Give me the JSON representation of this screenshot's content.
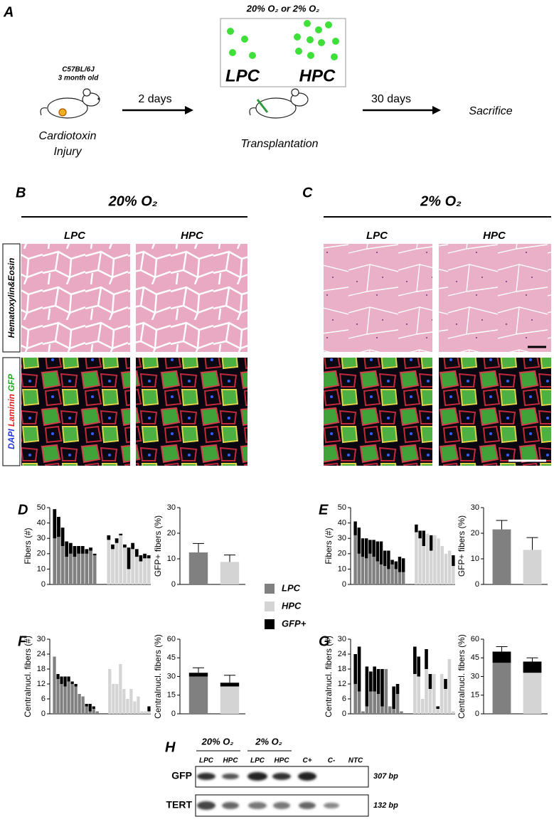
{
  "panel_a": {
    "letter": "A",
    "condition_line": "20% O₂ or 2% O₂",
    "box_labels": [
      "LPC",
      "HPC"
    ],
    "strain": "C57BL/6J",
    "age": "3 month old",
    "step1": "2 days",
    "step2": "30 days",
    "injury": [
      "Cardiotoxin",
      "Injury"
    ],
    "transplant": "Transplantation",
    "end": "Sacrifice"
  },
  "panel_b": {
    "letter": "B",
    "title": "20% O₂",
    "columns": [
      "LPC",
      "HPC"
    ],
    "stain_he": "Hematoxylin&Eosin",
    "stain_if": [
      "DAPI",
      "Laminin",
      "GFP"
    ]
  },
  "panel_c": {
    "letter": "C",
    "title": "2% O₂",
    "columns": [
      "LPC",
      "HPC"
    ]
  },
  "legend": [
    {
      "name": "LPC",
      "color": "#808080"
    },
    {
      "name": "HPC",
      "color": "#d4d4d4"
    },
    {
      "name": "GFP+",
      "color": "#000000"
    }
  ],
  "chart_data": [
    {
      "type": "bar",
      "panel": "D",
      "stacked": true,
      "ylabel": "Fibers (#)",
      "ylim": [
        0,
        50
      ],
      "yticks": [
        0,
        10,
        20,
        30,
        40,
        50
      ],
      "categories": [
        null,
        null,
        null,
        null,
        null,
        null,
        null,
        null,
        null,
        null,
        null,
        null,
        null,
        null,
        null,
        null,
        null,
        null,
        null,
        null,
        null,
        null
      ],
      "series": [
        {
          "name": "LPC",
          "color": "#808080",
          "values": [
            30,
            31,
            25,
            18,
            20,
            18,
            20,
            20,
            20,
            22,
            19,
            null,
            null,
            null,
            null,
            null,
            null,
            null,
            null,
            null,
            null,
            null
          ]
        },
        {
          "name": "HPC",
          "color": "#d4d4d4",
          "values": [
            null,
            null,
            null,
            null,
            null,
            null,
            null,
            null,
            null,
            null,
            null,
            29,
            23,
            27,
            32,
            24,
            10,
            23,
            18,
            15,
            17,
            17
          ]
        },
        {
          "name": "GFP+",
          "color": "#000000",
          "values": [
            19,
            13,
            12,
            10,
            7,
            7,
            5,
            5,
            3,
            2,
            1,
            3,
            3,
            3,
            1,
            2,
            14,
            4,
            5,
            4,
            3,
            2
          ]
        }
      ]
    },
    {
      "type": "bar",
      "stacked": true,
      "ylabel": "GFP+ fibers (%)",
      "ylim": [
        0,
        30
      ],
      "yticks": [
        0,
        10,
        20,
        30
      ],
      "categories": [
        null,
        null
      ],
      "series": [
        {
          "name": "LPC",
          "color": "#808080",
          "values": [
            12.5,
            null
          ],
          "errors": [
            3.5,
            null
          ]
        },
        {
          "name": "HPC",
          "color": "#d4d4d4",
          "values": [
            null,
            8.8
          ],
          "errors": [
            null,
            2.7
          ]
        }
      ]
    },
    {
      "type": "bar",
      "panel": "E",
      "stacked": true,
      "ylabel": "Fibers (#)",
      "ylim": [
        0,
        50
      ],
      "yticks": [
        0,
        10,
        20,
        30,
        40,
        50
      ],
      "categories": [
        null,
        null,
        null,
        null,
        null,
        null,
        null,
        null,
        null,
        null,
        null,
        null,
        null,
        null,
        null,
        null,
        null,
        null,
        null,
        null,
        null,
        null,
        null,
        null,
        null
      ],
      "series": [
        {
          "name": "LPC",
          "color": "#808080",
          "values": [
            32,
            20,
            18,
            17,
            20,
            18,
            15,
            13,
            12,
            10,
            13,
            10,
            8,
            8,
            null,
            null,
            null,
            null,
            null,
            null,
            null,
            null,
            null,
            null,
            null
          ]
        },
        {
          "name": "HPC",
          "color": "#d4d4d4",
          "values": [
            null,
            null,
            null,
            null,
            null,
            null,
            null,
            null,
            null,
            null,
            null,
            null,
            null,
            null,
            34,
            30,
            25,
            33,
            22,
            32,
            30,
            25,
            20,
            22,
            12
          ]
        },
        {
          "name": "GFP+",
          "color": "#000000",
          "values": [
            9,
            17,
            12,
            13,
            9,
            11,
            13,
            15,
            10,
            12,
            3,
            5,
            10,
            9,
            5,
            5,
            10,
            0,
            10,
            0,
            0,
            0,
            0,
            0,
            7
          ]
        }
      ]
    },
    {
      "type": "bar",
      "stacked": true,
      "ylabel": "GFP+ fibers (%)",
      "ylim": [
        0,
        30
      ],
      "yticks": [
        0,
        10,
        20,
        30
      ],
      "categories": [
        null,
        null
      ],
      "series": [
        {
          "name": "LPC",
          "color": "#808080",
          "values": [
            21.5,
            null
          ],
          "errors": [
            3.5,
            null
          ]
        },
        {
          "name": "HPC",
          "color": "#d4d4d4",
          "values": [
            null,
            13.5
          ],
          "errors": [
            null,
            4.8
          ]
        }
      ]
    },
    {
      "type": "bar",
      "panel": "F",
      "stacked": true,
      "ylabel": "Centralnucl. fibers (#)",
      "ylim": [
        0,
        30
      ],
      "yticks": [
        0,
        6,
        12,
        18,
        24,
        30
      ],
      "categories": [
        null,
        null,
        null,
        null,
        null,
        null,
        null,
        null,
        null,
        null,
        null,
        null,
        null,
        null,
        null,
        null,
        null,
        null,
        null,
        null,
        null,
        null,
        null,
        null,
        null
      ],
      "series": [
        {
          "name": "LPC",
          "color": "#808080",
          "values": [
            23,
            14,
            12,
            11,
            13,
            12,
            11,
            8,
            7,
            3,
            1,
            2,
            1,
            null,
            null,
            null,
            null,
            null,
            null,
            null,
            null,
            null,
            null,
            null,
            null
          ]
        },
        {
          "name": "HPC",
          "color": "#d4d4d4",
          "values": [
            null,
            null,
            null,
            null,
            null,
            null,
            null,
            null,
            null,
            null,
            null,
            null,
            null,
            18,
            12,
            12,
            20,
            10,
            6,
            10,
            5,
            7,
            1,
            1,
            1
          ]
        },
        {
          "name": "GFP+",
          "color": "#000000",
          "values": [
            0,
            2,
            3,
            4,
            2,
            1,
            1,
            0,
            0,
            1,
            3,
            1,
            0,
            0,
            0,
            0,
            0,
            0,
            0,
            0,
            0,
            0,
            0,
            0,
            2
          ]
        }
      ]
    },
    {
      "type": "bar",
      "stacked": true,
      "ylabel": "Centralnucl. fibers (%)",
      "ylim": [
        0,
        60
      ],
      "yticks": [
        0,
        15,
        30,
        45,
        60
      ],
      "categories": [
        null,
        null
      ],
      "series": [
        {
          "name": "LPC",
          "color": "#808080",
          "values": [
            30,
            null
          ]
        },
        {
          "name": "HPC",
          "color": "#d4d4d4",
          "values": [
            null,
            22
          ]
        },
        {
          "name": "GFP+",
          "color": "#000000",
          "values": [
            3,
            3
          ],
          "errors": [
            4,
            6
          ]
        }
      ]
    },
    {
      "type": "bar",
      "panel": "G",
      "stacked": true,
      "ylabel": "Centralnucl. fibers (#)",
      "ylim": [
        0,
        30
      ],
      "yticks": [
        0,
        6,
        12,
        18,
        24,
        30
      ],
      "categories": [
        null,
        null,
        null,
        null,
        null,
        null,
        null,
        null,
        null,
        null,
        null,
        null,
        null,
        null,
        null,
        null,
        null,
        null,
        null,
        null,
        null,
        null,
        null,
        null
      ],
      "series": [
        {
          "name": "LPC",
          "color": "#808080",
          "values": [
            12,
            9,
            1,
            3,
            9,
            9,
            8,
            3,
            18,
            3,
            2,
            8,
            1,
            null,
            null,
            null,
            null,
            null,
            null,
            null,
            null,
            null,
            null,
            null
          ]
        },
        {
          "name": "HPC",
          "color": "#d4d4d4",
          "values": [
            null,
            null,
            null,
            null,
            null,
            null,
            null,
            null,
            null,
            null,
            null,
            null,
            null,
            16,
            15,
            6,
            18,
            10,
            16,
            2,
            16,
            10,
            22,
            1
          ]
        },
        {
          "name": "GFP+",
          "color": "#000000",
          "values": [
            12,
            18,
            0,
            16,
            8,
            10,
            10,
            15,
            0,
            0,
            9,
            4,
            0,
            11,
            8,
            0,
            8,
            6,
            0,
            1,
            0,
            4,
            0,
            0
          ]
        }
      ]
    },
    {
      "type": "bar",
      "stacked": true,
      "ylabel": "Centralnucl. fibers (%)",
      "ylim": [
        0,
        60
      ],
      "yticks": [
        0,
        15,
        30,
        45,
        60
      ],
      "categories": [
        null,
        null
      ],
      "series": [
        {
          "name": "LPC",
          "color": "#808080",
          "values": [
            41,
            null
          ]
        },
        {
          "name": "HPC",
          "color": "#d4d4d4",
          "values": [
            null,
            33
          ]
        },
        {
          "name": "GFP+",
          "color": "#000000",
          "values": [
            9,
            9
          ],
          "errors": [
            4,
            3
          ]
        }
      ]
    }
  ],
  "panel_h": {
    "letter": "H",
    "groups": [
      "20% O₂",
      "2% O₂"
    ],
    "lanes": [
      "LPC",
      "HPC",
      "LPC",
      "HPC",
      "C+",
      "C-",
      "NTC"
    ],
    "rows": [
      {
        "gene": "GFP",
        "size": "307 bp"
      },
      {
        "gene": "TERT",
        "size": "132 bp"
      }
    ]
  }
}
